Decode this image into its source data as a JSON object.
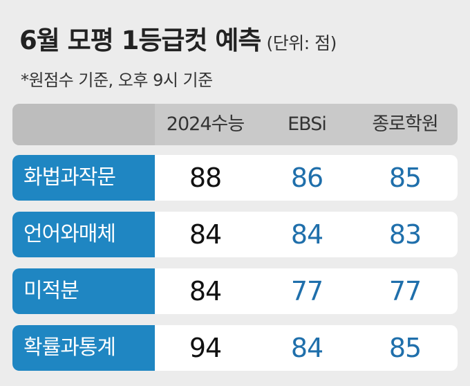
{
  "header": {
    "title": "6월 모평 1등급컷 예측",
    "unit": "(단위: 점)",
    "note": "*원점수 기준, 오후 9시 기준"
  },
  "colors": {
    "label_bg": "#1f86c2",
    "value_blue": "#1f6fab",
    "value_black": "#111111",
    "header_bg": "#c9c9c9"
  },
  "chart_data": {
    "type": "table",
    "columns": [
      "2024수능",
      "EBSi",
      "종로학원"
    ],
    "rows": [
      {
        "label": "화법과작문",
        "values": [
          "88",
          "86",
          "85"
        ]
      },
      {
        "label": "언어와매체",
        "values": [
          "84",
          "84",
          "83"
        ]
      },
      {
        "label": "미적분",
        "values": [
          "84",
          "77",
          "77"
        ]
      },
      {
        "label": "확률과통계",
        "values": [
          "94",
          "84",
          "85"
        ]
      }
    ]
  }
}
